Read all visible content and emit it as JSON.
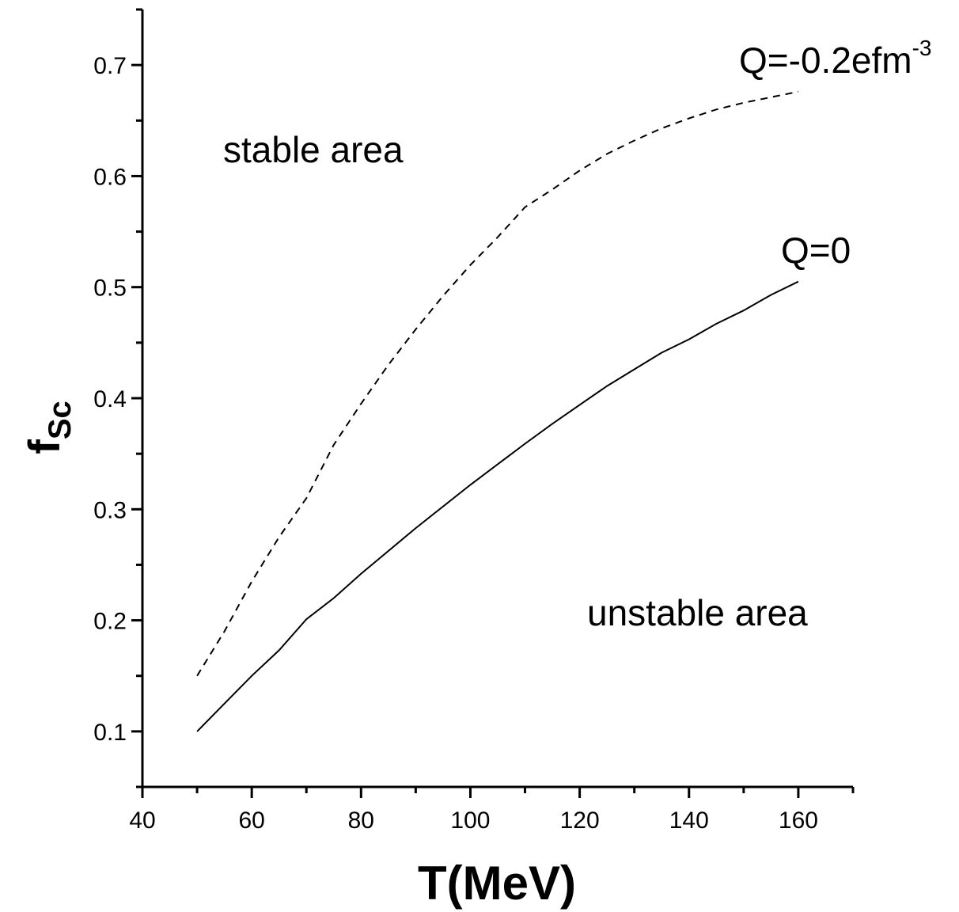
{
  "chart_data": {
    "type": "line",
    "xlabel": "T(MeV)",
    "ylabel_main": "f",
    "ylabel_sub": "Sc",
    "xlim": [
      40,
      170
    ],
    "ylim": [
      0.05,
      0.75
    ],
    "x_ticks": [
      40,
      60,
      80,
      100,
      120,
      140,
      160
    ],
    "x_tick_labels": [
      "40",
      "60",
      "80",
      "100",
      "120",
      "140",
      "160"
    ],
    "y_ticks": [
      0.1,
      0.2,
      0.3,
      0.4,
      0.5,
      0.6,
      0.7
    ],
    "y_tick_labels": [
      "0.1",
      "0.2",
      "0.3",
      "0.4",
      "0.5",
      "0.6",
      "0.7"
    ],
    "grid": false,
    "series": [
      {
        "name": "Q=0",
        "style": "solid",
        "x": [
          50,
          55,
          60,
          65,
          70,
          75,
          80,
          90,
          100,
          110,
          115,
          120,
          125,
          130,
          135,
          140,
          145,
          150,
          155,
          160
        ],
        "y": [
          0.1,
          0.125,
          0.15,
          0.173,
          0.201,
          0.22,
          0.242,
          0.283,
          0.322,
          0.359,
          0.377,
          0.394,
          0.411,
          0.426,
          0.441,
          0.453,
          0.467,
          0.479,
          0.493,
          0.505
        ]
      },
      {
        "name": "Q=-0.2efm",
        "name_sup": "-3",
        "style": "dashed",
        "x": [
          50,
          55,
          60,
          65,
          70,
          75,
          80,
          85,
          90,
          95,
          100,
          105,
          110,
          115,
          120,
          125,
          130,
          135,
          140,
          145,
          150,
          155,
          160
        ],
        "y": [
          0.15,
          0.19,
          0.235,
          0.275,
          0.31,
          0.358,
          0.395,
          0.43,
          0.462,
          0.492,
          0.52,
          0.545,
          0.572,
          0.588,
          0.605,
          0.62,
          0.632,
          0.643,
          0.652,
          0.66,
          0.666,
          0.671,
          0.676
        ]
      }
    ],
    "annotations": {
      "stable": "stable area",
      "unstable": "unstable area"
    }
  }
}
